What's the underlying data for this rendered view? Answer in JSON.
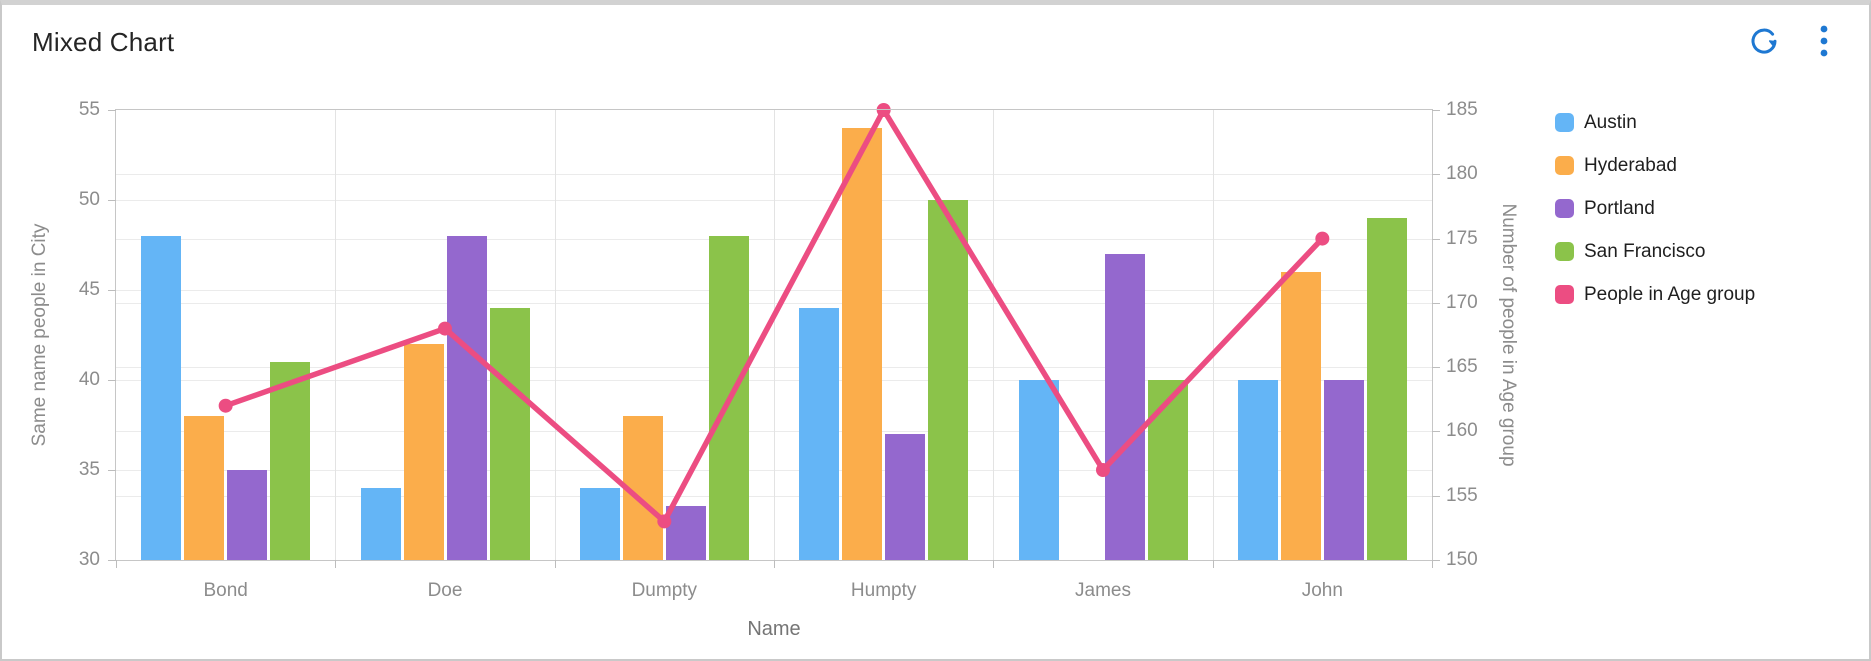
{
  "card": {
    "title": "Mixed Chart"
  },
  "toolbar": {
    "refresh_icon": "refresh-circular-arrow",
    "menu_icon": "vertical-kebab-dots",
    "icon_color": "#1E78D2"
  },
  "chart_data": {
    "type": "bar",
    "subtype": "mixed-bar-line-dual-axis",
    "categories": [
      "Bond",
      "Doe",
      "Dumpty",
      "Humpty",
      "James",
      "John"
    ],
    "series": [
      {
        "name": "Austin",
        "type": "bar",
        "axis": "left",
        "color": "#64B5F6",
        "values": [
          48,
          34,
          34,
          44,
          40,
          40
        ]
      },
      {
        "name": "Hyderabad",
        "type": "bar",
        "axis": "left",
        "color": "#FBAD4B",
        "values": [
          38,
          42,
          38,
          54,
          0,
          46
        ]
      },
      {
        "name": "Portland",
        "type": "bar",
        "axis": "left",
        "color": "#9468CE",
        "values": [
          35,
          48,
          33,
          37,
          47,
          40
        ]
      },
      {
        "name": "San Francisco",
        "type": "bar",
        "axis": "left",
        "color": "#8BC34A",
        "values": [
          41,
          44,
          48,
          50,
          40,
          49
        ]
      },
      {
        "name": "People in Age group",
        "type": "line",
        "axis": "right",
        "color": "#EC4D82",
        "values": [
          162,
          168,
          153,
          185,
          157,
          175
        ]
      }
    ],
    "x_axis": {
      "title": "Name"
    },
    "left_axis": {
      "title": "Same name people in City",
      "min": 30,
      "max": 55,
      "step": 5,
      "ticks": [
        30,
        35,
        40,
        45,
        50,
        55
      ]
    },
    "right_axis": {
      "title": "Number of people in Age group",
      "min": 150,
      "max": 185,
      "step": 5,
      "ticks": [
        150,
        155,
        160,
        165,
        170,
        175,
        180,
        185
      ]
    },
    "grid": true,
    "legend_position": "right",
    "legend": [
      "Austin",
      "Hyderabad",
      "Portland",
      "San Francisco",
      "People in Age group"
    ]
  },
  "colors": {
    "grid": "#ebebeb",
    "axis_line": "#c6c6c6",
    "tick_text": "#8c8c8c",
    "axis_title_text": "#8c8c8c",
    "title_text": "#252525",
    "legend_text": "#1f1f1f",
    "card_border": "#c9c9c9"
  }
}
